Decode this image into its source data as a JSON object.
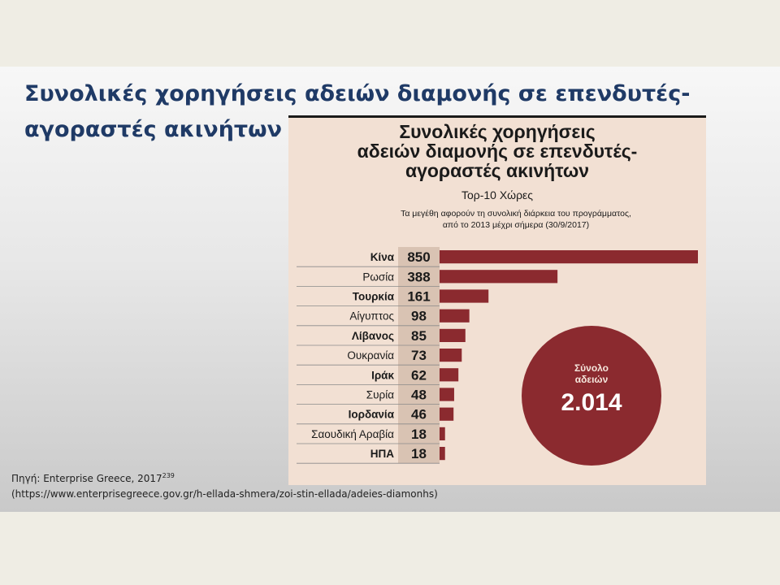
{
  "slide": {
    "title": "Συνολικές χορηγήσεις αδειών διαμονής σε επενδυτές-αγοραστές ακινήτων",
    "source_line1": "Πηγή: Enterprise Greece, 2017",
    "source_sup": "239",
    "source_line2": "(https://www.enterprisegreece.gov.gr/h-ellada-shmera/zoi-stin-ellada/adeies-diamonhs)"
  },
  "colors": {
    "bar": "#8b2a2f",
    "value_column": "#d9c3b3",
    "background": "#f2e0d3"
  },
  "chart_data": {
    "type": "bar",
    "orientation": "horizontal",
    "title_lines": [
      "Συνολικές χορηγήσεις",
      "αδειών διαμονής σε επενδυτές-",
      "αγοραστές ακινήτων"
    ],
    "subtitle": "Τορ-10 Χώρες",
    "note_lines": [
      "Τα μεγέθη αφορούν τη συνολική διάρκεια του προγράμματος,",
      "από το 2013 μέχρι σήμερα (30/9/2017)"
    ],
    "categories": [
      "Κίνα",
      "Ρωσία",
      "Τουρκία",
      "Αίγυπτος",
      "Λίβανος",
      "Ουκρανία",
      "Ιράκ",
      "Συρία",
      "Ιορδανία",
      "Σαουδική Αραβία",
      "ΗΠΑ"
    ],
    "bold": [
      true,
      false,
      true,
      false,
      true,
      false,
      true,
      false,
      true,
      false,
      true
    ],
    "values": [
      850,
      388,
      161,
      98,
      85,
      73,
      62,
      48,
      46,
      18,
      18
    ],
    "value_labels": [
      "850",
      "388",
      "161",
      "98",
      "85",
      "73",
      "62",
      "48",
      "46",
      "18",
      "18"
    ],
    "total": {
      "label_lines": [
        "Σύνολο",
        "αδειών"
      ],
      "value": "2.014"
    }
  }
}
